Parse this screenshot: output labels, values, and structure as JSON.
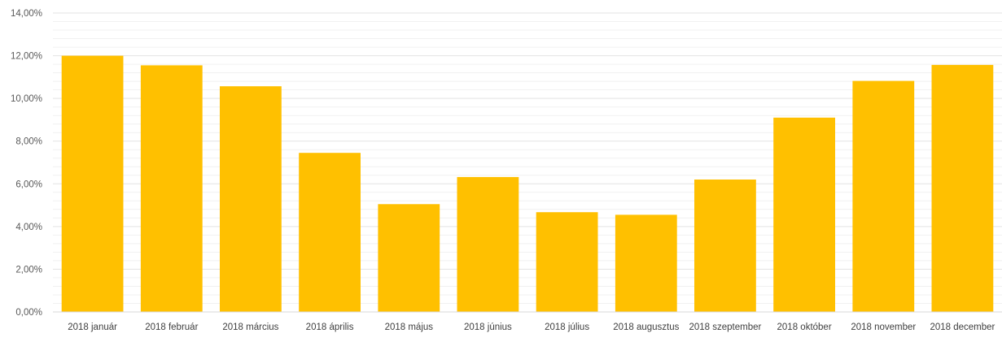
{
  "chart_data": {
    "type": "bar",
    "title": "",
    "xlabel": "",
    "ylabel": "",
    "categories": [
      "2018 január",
      "2018 február",
      "2018 március",
      "2018 április",
      "2018 május",
      "2018 június",
      "2018 július",
      "2018 augusztus",
      "2018 szeptember",
      "2018 október",
      "2018 november",
      "2018 december"
    ],
    "values": [
      12.0,
      11.55,
      10.57,
      7.45,
      5.05,
      6.32,
      4.67,
      4.55,
      6.2,
      9.1,
      10.82,
      11.57
    ],
    "ylim": [
      0,
      14
    ],
    "yticks": [
      "0,00%",
      "2,00%",
      "4,00%",
      "6,00%",
      "8,00%",
      "10,00%",
      "12,00%",
      "14,00%"
    ],
    "y_tick_values": [
      0,
      2,
      4,
      6,
      8,
      10,
      12,
      14
    ],
    "bar_color": "#FFC000",
    "gridline_color": "#E6E6E6",
    "axis_color": "#D9D9D9",
    "grid": true,
    "legend": "none"
  }
}
